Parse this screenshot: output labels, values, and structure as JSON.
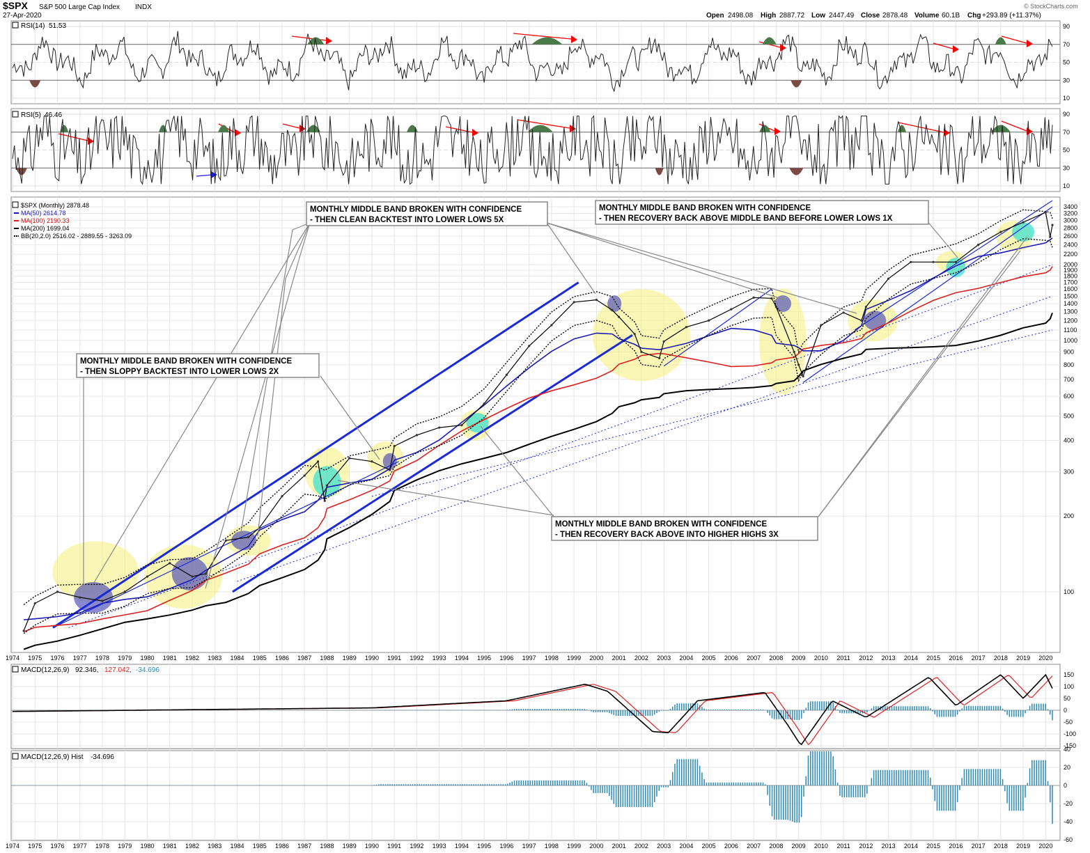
{
  "header": {
    "symbol": "$SPX",
    "name": "S&P 500 Large Cap Index",
    "exchange": "INDX",
    "date": "27-Apr-2020",
    "quote": {
      "open_label": "Open",
      "open": "2498.08",
      "high_label": "High",
      "high": "2887.72",
      "low_label": "Low",
      "low": "2447.49",
      "close_label": "Close",
      "close": "2878.48",
      "volume_label": "Volume",
      "volume": "60.1B",
      "chg_label": "Chg",
      "chg": "+293.89 (+11.37%)"
    },
    "copyright": "© StockCharts.com"
  },
  "colors": {
    "price_line": "#000000",
    "ma50": "#1a1ab8",
    "ma100": "#e02020",
    "ma200": "#000000",
    "rsi_fill_high": "#4a7a4a",
    "rsi_fill_low": "#7a4a44",
    "arrow_red": "#ff0000",
    "arrow_blue": "#1a1aff",
    "highlight_yellow": "#f5f07a",
    "highlight_blue": "#4a4ab8",
    "highlight_cyan": "#40e0d0",
    "macd_signal": "#e02020",
    "macd_hist": "#2a8ab8",
    "channel": "#1a2ad8"
  },
  "panels": {
    "rsi14": {
      "label": "RSI(14)",
      "value": "51.53",
      "ticks": [
        "90",
        "70",
        "50",
        "30",
        "10"
      ]
    },
    "rsi5": {
      "label": "RSI(5)",
      "value": "46.46",
      "ticks": [
        "90",
        "70",
        "50",
        "30",
        "10"
      ]
    },
    "price": {
      "legend": [
        {
          "label": "$SPX (Monthly) 2878.48",
          "color": "#000000"
        },
        {
          "label": "MA(50) 2614.78",
          "color": "#1a1ab8"
        },
        {
          "label": "MA(100) 2190.33",
          "color": "#e02020"
        },
        {
          "label": "MA(200) 1699.04",
          "color": "#000000"
        },
        {
          "label": "BB(20,2.0) 2516.02 - 2889.55 - 3263.09",
          "color": "#000000"
        }
      ],
      "y_ticks": [
        "3400",
        "3200",
        "3000",
        "2800",
        "2600",
        "2400",
        "2200",
        "2000",
        "1900",
        "1800",
        "1700",
        "1600",
        "1500",
        "1400",
        "1300",
        "1200",
        "1100",
        "1000",
        "900",
        "800",
        "700",
        "600",
        "500",
        "400",
        "300",
        "200",
        "100"
      ]
    },
    "macd": {
      "label": "MACD(12,26,9)",
      "v1": "92.346,",
      "v2": "127.042,",
      "v3": "-34.696",
      "ticks": [
        "150",
        "100",
        "50",
        "0",
        "-50",
        "-100",
        "-150"
      ]
    },
    "hist": {
      "label": "MACD(12,26,9) Hist",
      "value": "-34.696",
      "ticks": [
        "40",
        "20",
        "0",
        "-20",
        "-40",
        "-60"
      ]
    }
  },
  "x_years": [
    "1974",
    "1975",
    "1976",
    "1977",
    "1978",
    "1979",
    "1980",
    "1981",
    "1982",
    "1983",
    "1984",
    "1985",
    "1986",
    "1987",
    "1988",
    "1989",
    "1990",
    "1991",
    "1992",
    "1993",
    "1994",
    "1995",
    "1996",
    "1997",
    "1998",
    "1999",
    "2000",
    "2001",
    "2002",
    "2003",
    "2004",
    "2005",
    "2006",
    "2007",
    "2008",
    "2009",
    "2010",
    "2011",
    "2012",
    "2013",
    "2014",
    "2015",
    "2016",
    "2017",
    "2018",
    "2019",
    "2020"
  ],
  "annotations": [
    {
      "line1": "MONTHLY MIDDLE BAND BROKEN WITH CONFIDENCE",
      "line2": "- THEN CLEAN BACKTEST INTO LOWER LOWS 5X"
    },
    {
      "line1": "MONTHLY MIDDLE BAND BROKEN WITH CONFIDENCE",
      "line2": "- THEN RECOVERY BACK ABOVE MIDDLE BAND BEFORE LOWER LOWS 1X"
    },
    {
      "line1": "MONTHLY MIDDLE BAND BROKEN WITH CONFIDENCE",
      "line2": "- THEN SLOPPY BACKTEST INTO LOWER LOWS 2X"
    },
    {
      "line1": "MONTHLY MIDDLE BAND BROKEN WITH CONFIDENCE",
      "line2": "- THEN RECOVERY BACK ABOVE INTO HIGHER HIGHS 3X"
    }
  ],
  "chart_data": {
    "type": "line",
    "title": "$SPX S&P 500 Large Cap Index INDX",
    "xlabel": "",
    "ylabel": "",
    "y_scale": "log",
    "ylim": [
      60,
      3600
    ],
    "x": [
      1974.5,
      1975,
      1976,
      1977,
      1978,
      1979,
      1980,
      1981,
      1982,
      1982.6,
      1983.5,
      1984.5,
      1985,
      1986,
      1987,
      1987.6,
      1987.9,
      1988,
      1989,
      1990,
      1990.8,
      1991,
      1992,
      1993,
      1994,
      1995,
      1996,
      1997,
      1998,
      1999,
      2000,
      2000.7,
      2001,
      2001.7,
      2002,
      2002.8,
      2003,
      2004,
      2005,
      2006,
      2007,
      2007.8,
      2008,
      2008.8,
      2009,
      2009.2,
      2010,
      2011,
      2011.8,
      2012,
      2013,
      2014,
      2015,
      2016,
      2017,
      2018,
      2019,
      2020,
      2020.2,
      2020.3
    ],
    "series": [
      {
        "name": "$SPX",
        "values": [
          70,
          90,
          100,
          95,
          92,
          100,
          115,
          130,
          115,
          118,
          160,
          165,
          180,
          240,
          290,
          330,
          230,
          265,
          340,
          330,
          305,
          380,
          420,
          450,
          460,
          560,
          730,
          950,
          1150,
          1420,
          1450,
          1320,
          1240,
          1060,
          900,
          850,
          990,
          1130,
          1200,
          1330,
          1480,
          1470,
          1360,
          900,
          800,
          720,
          1150,
          1290,
          1200,
          1360,
          1760,
          2050,
          2050,
          2050,
          2400,
          2700,
          2950,
          3230,
          2580,
          2878
        ]
      }
    ],
    "legend": "top-left",
    "grid": true
  }
}
